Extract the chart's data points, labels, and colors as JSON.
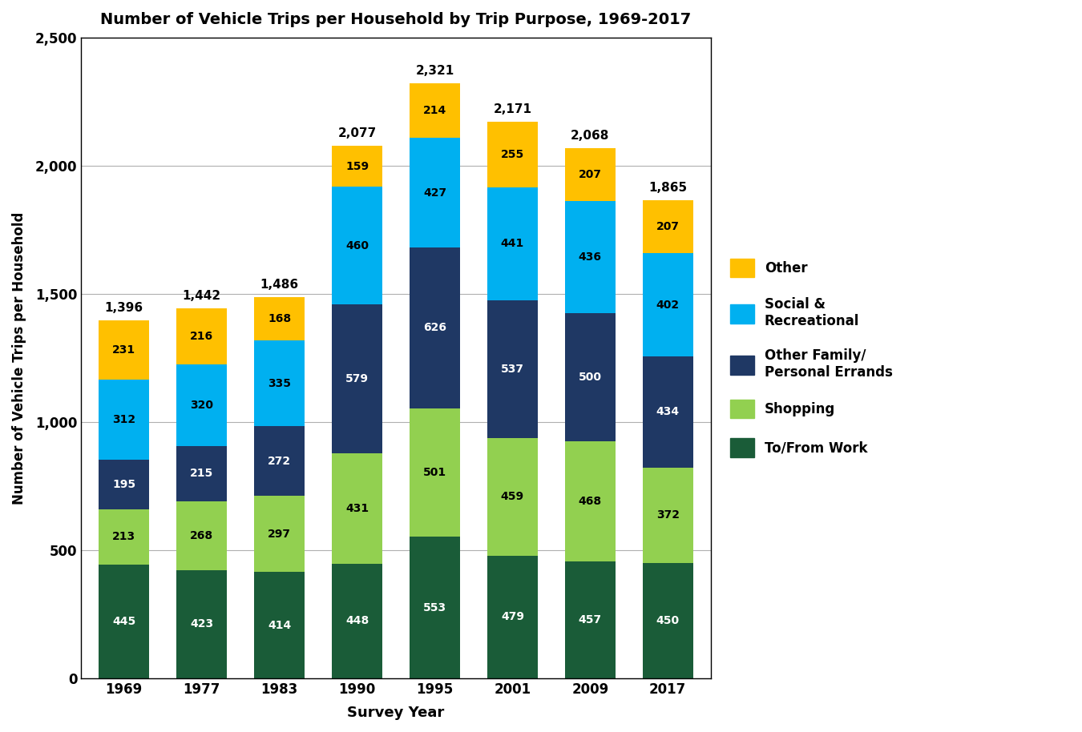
{
  "title": "Number of Vehicle Trips per Household by Trip Purpose, 1969-2017",
  "xlabel": "Survey Year",
  "ylabel": "Number of Vehicle Trips per Household",
  "years": [
    "1969",
    "1977",
    "1983",
    "1990",
    "1995",
    "2001",
    "2009",
    "2017"
  ],
  "totals": [
    1396,
    1442,
    1486,
    2077,
    2321,
    2171,
    2068,
    1865
  ],
  "series": {
    "To/From Work": [
      445,
      423,
      414,
      448,
      553,
      479,
      457,
      450
    ],
    "Shopping": [
      213,
      268,
      297,
      431,
      501,
      459,
      468,
      372
    ],
    "Other Family/Personal Errands": [
      195,
      215,
      272,
      579,
      626,
      537,
      500,
      434
    ],
    "Social & Recreational": [
      312,
      320,
      335,
      460,
      427,
      441,
      436,
      402
    ],
    "Other": [
      231,
      216,
      168,
      159,
      214,
      255,
      207,
      207
    ]
  },
  "colors": {
    "To/From Work": "#1a5c38",
    "Shopping": "#92d050",
    "Other Family/Personal Errands": "#1f3864",
    "Social & Recreational": "#00b0f0",
    "Other": "#ffc000"
  },
  "text_colors": {
    "To/From Work": "white",
    "Shopping": "black",
    "Other Family/Personal Errands": "white",
    "Social & Recreational": "black",
    "Other": "black"
  },
  "legend_labels": [
    "Other",
    "Social &\nRecreational",
    "Other Family/\nPersonal Errands",
    "Shopping",
    "To/From Work"
  ],
  "legend_colors": [
    "#ffc000",
    "#00b0f0",
    "#1f3864",
    "#92d050",
    "#1a5c38"
  ],
  "ylim": [
    0,
    2500
  ],
  "yticks": [
    0,
    500,
    1000,
    1500,
    2000,
    2500
  ],
  "bar_width": 0.65,
  "figsize": [
    13.5,
    9.14
  ],
  "dpi": 100
}
